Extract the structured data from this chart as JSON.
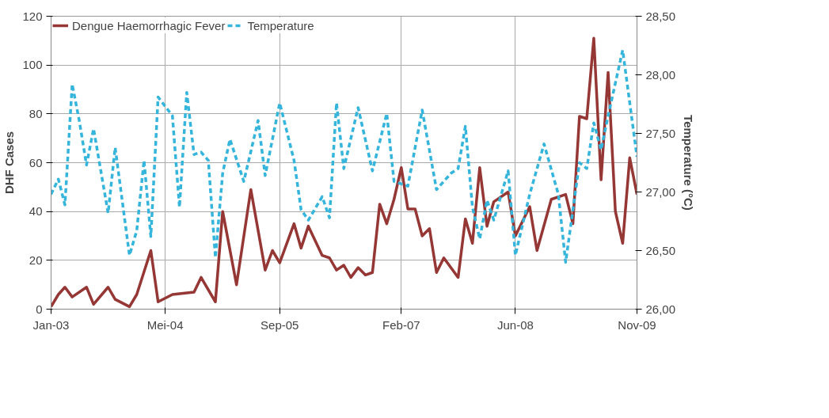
{
  "chart_data": {
    "type": "line",
    "ylabel": "DHF Cases",
    "y2label": "Temperature (°C)",
    "xlim": [
      "2003-01",
      "2009-11"
    ],
    "xticks": [
      {
        "value": "2003-01",
        "label": "Jan-03"
      },
      {
        "value": "2004-05",
        "label": "Mei-04"
      },
      {
        "value": "2005-09",
        "label": "Sep-05"
      },
      {
        "value": "2007-02",
        "label": "Feb-07"
      },
      {
        "value": "2008-06",
        "label": "Jun-08"
      },
      {
        "value": "2009-11",
        "label": "Nov-09"
      }
    ],
    "ylim": [
      0,
      120
    ],
    "yticks": [
      0,
      20,
      40,
      60,
      80,
      100,
      120
    ],
    "y2lim": [
      26,
      28.5
    ],
    "y2ticks": [
      {
        "value": 26,
        "label": "26,00"
      },
      {
        "value": 26.5,
        "label": "26,50"
      },
      {
        "value": 27,
        "label": "27,00"
      },
      {
        "value": 27.5,
        "label": "27,50"
      },
      {
        "value": 28,
        "label": "28,00"
      },
      {
        "value": 28.5,
        "label": "28,50"
      }
    ],
    "grid": true,
    "legend": "top left",
    "series": [
      {
        "name": "Dengue Haemorrhagic Fever",
        "color": "#953735",
        "line_style": "solid",
        "x": [
          "2003-01",
          "2003-02",
          "2003-03",
          "2003-04",
          "2003-06",
          "2003-07",
          "2003-09",
          "2003-10",
          "2003-12",
          "2004-01",
          "2004-03",
          "2004-04",
          "2004-06",
          "2004-09",
          "2004-10",
          "2004-12",
          "2005-01",
          "2005-03",
          "2005-05",
          "2005-07",
          "2005-08",
          "2005-09",
          "2005-11",
          "2005-12",
          "2006-01",
          "2006-03",
          "2006-04",
          "2006-05",
          "2006-06",
          "2006-07",
          "2006-08",
          "2006-09",
          "2006-10",
          "2006-11",
          "2006-12",
          "2007-01",
          "2007-02",
          "2007-03",
          "2007-04",
          "2007-05",
          "2007-06",
          "2007-07",
          "2007-08",
          "2007-10",
          "2007-11",
          "2007-12",
          "2008-01",
          "2008-02",
          "2008-03",
          "2008-05",
          "2008-06",
          "2008-08",
          "2008-09",
          "2008-11",
          "2009-01",
          "2009-02",
          "2009-03",
          "2009-04",
          "2009-05",
          "2009-06",
          "2009-07",
          "2009-08",
          "2009-09",
          "2009-10",
          "2009-11"
        ],
        "values": [
          1,
          6,
          9,
          5,
          9,
          2,
          9,
          4,
          1,
          6,
          24,
          3,
          6,
          7,
          13,
          3,
          40,
          10,
          49,
          16,
          24,
          19,
          35,
          25,
          34,
          22,
          21,
          16,
          18,
          13,
          17,
          14,
          15,
          43,
          35,
          45,
          58,
          41,
          41,
          30,
          33,
          15,
          21,
          13,
          37,
          27,
          58,
          34,
          44,
          48,
          30,
          42,
          24,
          45,
          47,
          35,
          79,
          78,
          111,
          53,
          97,
          40,
          27,
          62,
          47
        ]
      },
      {
        "name": "Temperature",
        "color": "#35b4dc",
        "line_style": "dashed",
        "axis": "y2",
        "x": [
          "2003-01",
          "2003-02",
          "2003-03",
          "2003-04",
          "2003-05",
          "2003-06",
          "2003-07",
          "2003-09",
          "2003-10",
          "2003-12",
          "2004-01",
          "2004-02",
          "2004-03",
          "2004-04",
          "2004-06",
          "2004-07",
          "2004-08",
          "2004-09",
          "2004-10",
          "2004-11",
          "2004-12",
          "2005-01",
          "2005-02",
          "2005-04",
          "2005-06",
          "2005-07",
          "2005-09",
          "2005-11",
          "2005-12",
          "2006-01",
          "2006-03",
          "2006-04",
          "2006-05",
          "2006-06",
          "2006-08",
          "2006-10",
          "2006-12",
          "2007-01",
          "2007-03",
          "2007-05",
          "2007-07",
          "2007-09",
          "2007-10",
          "2007-11",
          "2007-12",
          "2008-01",
          "2008-02",
          "2008-03",
          "2008-05",
          "2008-06",
          "2008-08",
          "2008-10",
          "2008-12",
          "2009-01",
          "2009-03",
          "2009-04",
          "2009-05",
          "2009-06",
          "2009-07",
          "2009-09",
          "2009-11"
        ],
        "values": [
          26.98,
          27.11,
          26.89,
          27.92,
          27.61,
          27.23,
          27.54,
          26.82,
          27.38,
          26.46,
          26.67,
          27.27,
          26.62,
          27.81,
          27.65,
          26.87,
          27.85,
          27.32,
          27.34,
          27.27,
          26.44,
          27.16,
          27.45,
          27.09,
          27.61,
          27.14,
          27.76,
          27.27,
          26.85,
          26.76,
          26.96,
          26.78,
          27.76,
          27.2,
          27.72,
          27.18,
          27.67,
          27.09,
          27.05,
          27.7,
          27.02,
          27.16,
          27.2,
          27.56,
          26.87,
          26.6,
          26.93,
          26.76,
          27.18,
          26.46,
          26.98,
          27.41,
          26.98,
          26.4,
          27.25,
          27.2,
          27.59,
          27.36,
          27.65,
          28.21,
          27.3
        ]
      }
    ]
  }
}
